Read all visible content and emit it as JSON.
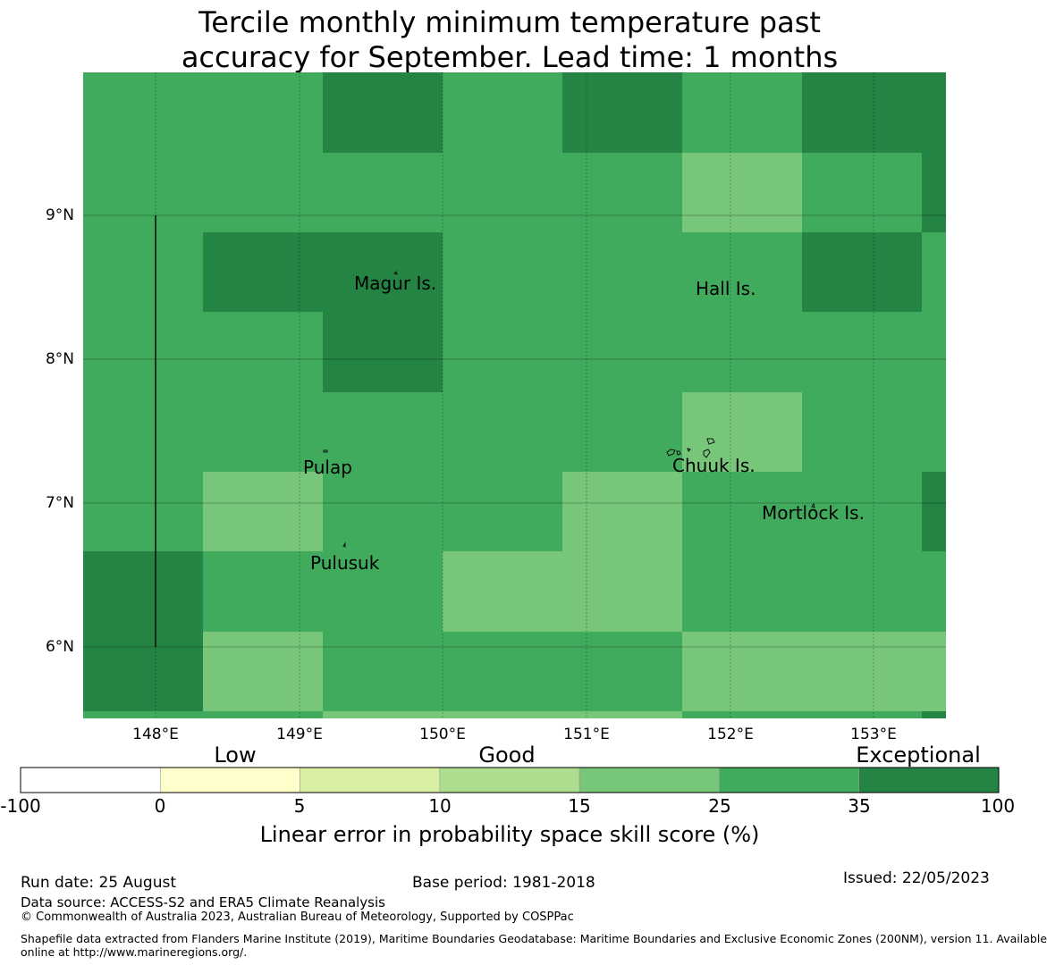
{
  "title": {
    "line1": "Tercile monthly minimum temperature past",
    "line2": "accuracy for September. Lead time: 1 months"
  },
  "map": {
    "lon_range": [
      147.5,
      153.5
    ],
    "lat_range": [
      5.5,
      10.0
    ],
    "grid_step_deg": 0.833,
    "lon_ticks": [
      "148°E",
      "149°E",
      "150°E",
      "151°E",
      "152°E",
      "153°E"
    ],
    "lat_ticks": [
      "9°N",
      "8°N",
      "7°N",
      "6°N"
    ],
    "palette": {
      "c15_25": "#78c679",
      "c25_35": "#41ab5d",
      "c35_100": "#238443"
    },
    "grid_rows": [
      [
        "c25_35",
        "c25_35",
        "c35_100",
        "c25_35",
        "c35_100",
        "c25_35",
        "c35_100",
        "c35_100"
      ],
      [
        "c25_35",
        "c25_35",
        "c25_35",
        "c25_35",
        "c25_35",
        "c15_25",
        "c25_35",
        "c35_100"
      ],
      [
        "c25_35",
        "c35_100",
        "c35_100",
        "c25_35",
        "c25_35",
        "c25_35",
        "c35_100",
        "c25_35"
      ],
      [
        "c25_35",
        "c25_35",
        "c35_100",
        "c25_35",
        "c25_35",
        "c25_35",
        "c25_35",
        "c25_35"
      ],
      [
        "c25_35",
        "c25_35",
        "c25_35",
        "c25_35",
        "c25_35",
        "c15_25",
        "c25_35",
        "c25_35"
      ],
      [
        "c25_35",
        "c15_25",
        "c25_35",
        "c25_35",
        "c15_25",
        "c25_35",
        "c25_35",
        "c35_100"
      ],
      [
        "c35_100",
        "c25_35",
        "c25_35",
        "c15_25",
        "c15_25",
        "c25_35",
        "c25_35",
        "c25_35"
      ],
      [
        "c35_100",
        "c15_25",
        "c25_35",
        "c25_35",
        "c25_35",
        "c15_25",
        "c15_25",
        "c15_25"
      ],
      [
        "c25_35",
        "c25_35",
        "c15_25",
        "c15_25",
        "c15_25",
        "c25_35",
        "c25_35",
        "c35_100"
      ]
    ],
    "places": [
      {
        "name": "Magur Is.",
        "lon": 149.7,
        "lat": 8.55
      },
      {
        "name": "Hall Is.",
        "lon": 151.8,
        "lat": 8.5
      },
      {
        "name": "Pulap",
        "lon": 149.1,
        "lat": 7.3
      },
      {
        "name": "Chuuk Is.",
        "lon": 151.8,
        "lat": 7.35
      },
      {
        "name": "Mortlock Is.",
        "lon": 152.5,
        "lat": 7.0
      },
      {
        "name": "Pulusuk",
        "lon": 149.2,
        "lat": 6.6
      }
    ]
  },
  "colorbar": {
    "categories": [
      "Low",
      "Good",
      "Exceptional"
    ],
    "ticks": [
      "-100",
      "0",
      "5",
      "10",
      "15",
      "25",
      "35",
      "100"
    ],
    "colors": [
      "#ffffff",
      "#ffffcc",
      "#d9f0a3",
      "#addd8e",
      "#78c679",
      "#41ab5d",
      "#238443"
    ],
    "label": "Linear error in probability space skill score (%)"
  },
  "footer": {
    "run_date": "Run date: 25 August",
    "base_period": "Base period: 1981-2018",
    "issued": "Issued: 22/05/2023",
    "data_source": "Data source: ACCESS-S2 and ERA5 Climate Reanalysis",
    "copyright": "© Commonwealth of Australia 2023, Australian Bureau of Meteorology, Supported by COSPPac",
    "shapefile_line1": "Shapefile data extracted from Flanders Marine Institute (2019), Maritime Boundaries Geodatabase: Maritime Boundaries and Exclusive Economic Zones (200NM), version 11. Available",
    "shapefile_line2": "online at http://www.marineregions.org/."
  }
}
